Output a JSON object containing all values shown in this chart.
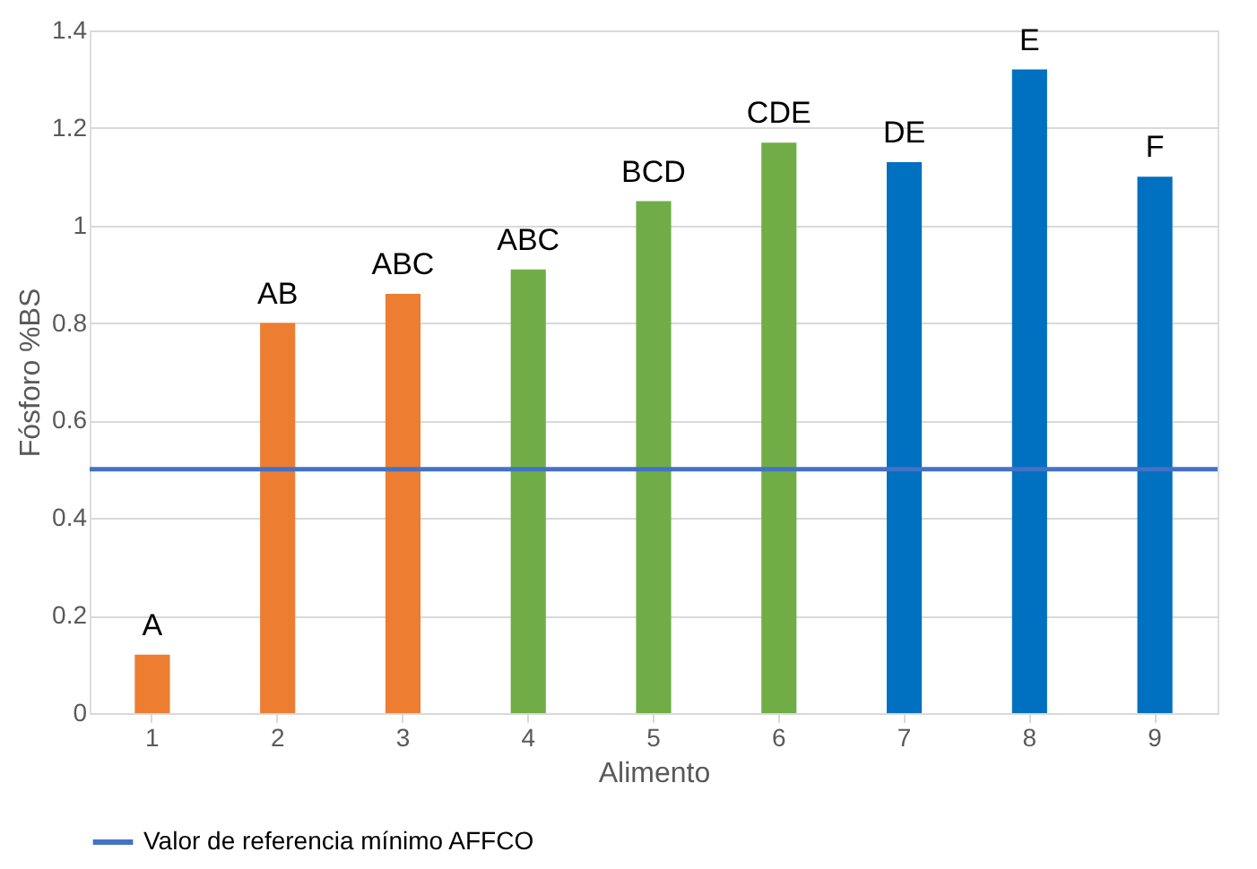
{
  "chart_data": {
    "type": "bar",
    "xlabel": "Alimento",
    "ylabel": "Fósforo %BS",
    "categories": [
      "1",
      "2",
      "3",
      "4",
      "5",
      "6",
      "7",
      "8",
      "9"
    ],
    "values": [
      0.12,
      0.8,
      0.86,
      0.91,
      1.05,
      1.17,
      1.13,
      1.32,
      1.1
    ],
    "colors": [
      "#ed7d31",
      "#ed7d31",
      "#ed7d31",
      "#70ad47",
      "#70ad47",
      "#70ad47",
      "#0070c0",
      "#0070c0",
      "#0070c0"
    ],
    "ylim": [
      0,
      1.4
    ],
    "yticks": [
      0,
      0.2,
      0.4,
      0.6,
      0.8,
      1,
      1.2,
      1.4
    ],
    "grid": "y",
    "legend": "bottom",
    "ref_lines": [
      {
        "axis": "y",
        "value": 0.5,
        "label": "Valor de referencia mínimo AFFCO",
        "color": "#4472c4"
      }
    ],
    "annotations": [
      {
        "text": "A",
        "x": "1",
        "y": 0.12
      },
      {
        "text": "AB",
        "x": "2",
        "y": 0.8
      },
      {
        "text": "ABC",
        "x": "3",
        "y": 0.86
      },
      {
        "text": "ABC",
        "x": "4",
        "y": 0.91
      },
      {
        "text": "BCD",
        "x": "5",
        "y": 1.05
      },
      {
        "text": "CDE",
        "x": "6",
        "y": 1.17
      },
      {
        "text": "DE",
        "x": "7",
        "y": 1.13
      },
      {
        "text": "E",
        "x": "8",
        "y": 1.32
      },
      {
        "text": "F",
        "x": "9",
        "y": 1.1
      }
    ]
  }
}
